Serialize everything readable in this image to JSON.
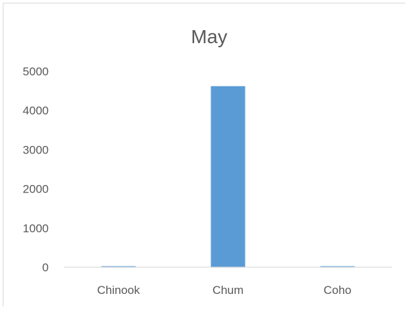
{
  "chart_data": {
    "type": "bar",
    "title": "May",
    "xlabel": "",
    "ylabel": "",
    "categories": [
      "Chinook",
      "Chum",
      "Coho"
    ],
    "series": [
      {
        "values": [
          5,
          4620,
          25
        ]
      }
    ],
    "ylim": [
      0,
      5000
    ],
    "yticks": [
      "0",
      "1000",
      "2000",
      "3000",
      "4000",
      "5000"
    ],
    "grid": false,
    "legend": "none",
    "bar_color": "#5b9bd5",
    "axis_color": "#d9d9d9",
    "text_color": "#595959"
  }
}
